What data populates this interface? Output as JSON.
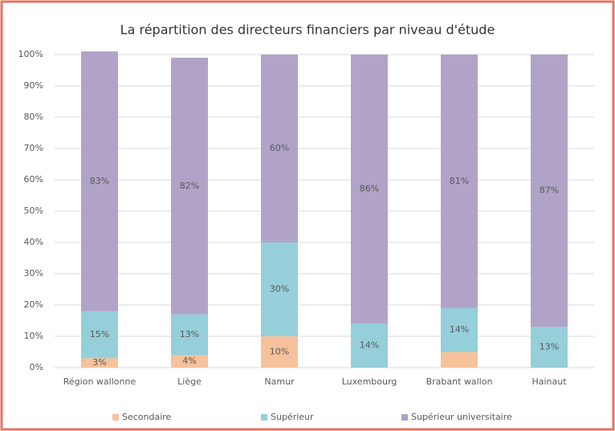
{
  "chart_data": {
    "type": "stacked_bar",
    "title": "La répartition des directeurs financiers par niveau d'étude",
    "categories": [
      "Région wallonne",
      "Liège",
      "Namur",
      "Luxembourg",
      "Brabant wallon",
      "Hainaut"
    ],
    "series": [
      {
        "name": "Secondaire",
        "color": "#f5c29b",
        "values": [
          3,
          4,
          10,
          0,
          5,
          0
        ],
        "value_labels": [
          "3%",
          "4%",
          "10%",
          null,
          null,
          null
        ]
      },
      {
        "name": "Supérieur",
        "color": "#95cfda",
        "values": [
          15,
          13,
          30,
          14,
          14,
          13
        ],
        "value_labels": [
          "15%",
          "13%",
          "30%",
          "14%",
          "14%",
          "13%"
        ]
      },
      {
        "name": "Supérieur universitaire",
        "color": "#b1a3c8",
        "values": [
          83,
          82,
          60,
          86,
          81,
          87
        ],
        "value_labels": [
          "83%",
          "82%",
          "60%",
          "86%",
          "81%",
          "87%"
        ]
      }
    ],
    "ylim": [
      0,
      100
    ],
    "yticks": [
      {
        "value": 0,
        "label": "0%"
      },
      {
        "value": 10,
        "label": "10%"
      },
      {
        "value": 20,
        "label": "20%"
      },
      {
        "value": 30,
        "label": "30%"
      },
      {
        "value": 40,
        "label": "40%"
      },
      {
        "value": 50,
        "label": "50%"
      },
      {
        "value": 60,
        "label": "60%"
      },
      {
        "value": 70,
        "label": "70%"
      },
      {
        "value": 80,
        "label": "80%"
      },
      {
        "value": 90,
        "label": "90%"
      },
      {
        "value": 100,
        "label": "100%"
      }
    ],
    "grid": true,
    "legend": "bottom"
  }
}
